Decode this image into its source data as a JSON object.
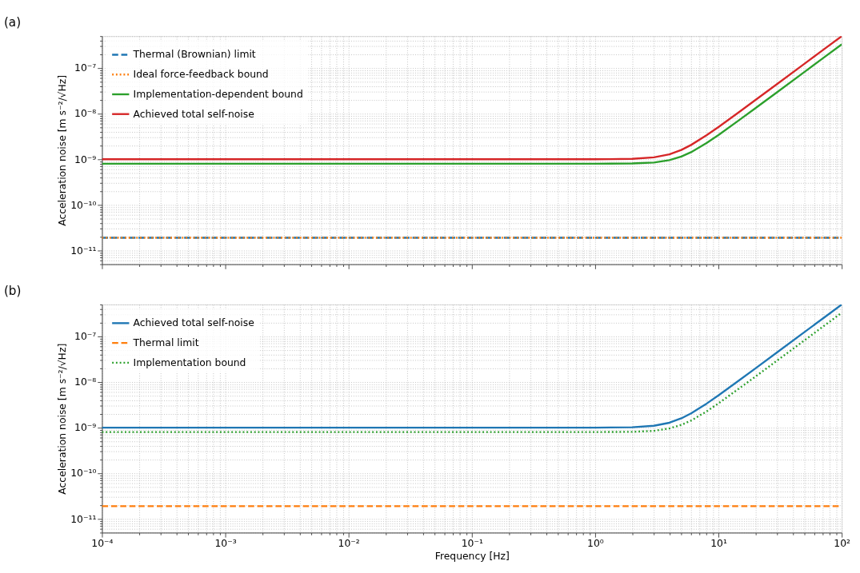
{
  "chart_data": [
    {
      "type": "line",
      "title": "(a)",
      "ylabel": "Acceleration noise  [m s⁻²/√Hz]",
      "log": "xy",
      "grid": true,
      "legend": "top left",
      "tick_labels": "y",
      "xlim": [
        0.0001,
        100
      ],
      "ylim": [
        5e-12,
        5e-07
      ],
      "xticks": [
        {
          "value": 0.0001,
          "label": null
        },
        {
          "value": 0.001,
          "label": null
        },
        {
          "value": 0.01,
          "label": null
        },
        {
          "value": 0.1,
          "label": null
        },
        {
          "value": 1,
          "label": null
        },
        {
          "value": 10,
          "label": null
        },
        {
          "value": 100,
          "label": null
        }
      ],
      "yticks": [
        {
          "value": 1e-11,
          "label": "10⁻¹¹"
        },
        {
          "value": 1e-10,
          "label": "10⁻¹⁰"
        },
        {
          "value": 1e-09,
          "label": "10⁻⁹"
        },
        {
          "value": 1e-08,
          "label": "10⁻⁸"
        },
        {
          "value": 1e-07,
          "label": "10⁻⁷"
        }
      ],
      "series": [
        {
          "name": "Thermal (Brownian) limit",
          "color": "#1f77b4",
          "line_style": "dashed",
          "x": [
            0.0001,
            100
          ],
          "values": [
            1.9e-11,
            1.9e-11
          ]
        },
        {
          "name": "Ideal force-feedback bound",
          "color": "#ff7f0e",
          "line_style": "dotted",
          "x": [
            0.0001,
            100
          ],
          "values": [
            1.9e-11,
            1.9e-11
          ]
        },
        {
          "name": "Implementation-dependent bound",
          "color": "#2ca02c",
          "line_style": "solid",
          "x": [
            0.0001,
            0.001,
            0.01,
            0.1,
            1,
            2,
            3,
            4,
            5,
            6,
            8,
            10,
            15,
            20,
            30,
            50,
            70,
            100
          ],
          "values": [
            8e-10,
            8e-10,
            8e-10,
            8e-10,
            8e-10,
            8.1e-10,
            8.5e-10,
            9.6e-10,
            1.15e-09,
            1.43e-09,
            2.26e-09,
            3.4e-09,
            7.5e-09,
            1.32e-08,
            2.97e-08,
            8.25e-08,
            1.62e-07,
            3.3e-07
          ]
        },
        {
          "name": "Achieved total self-noise",
          "color": "#d62728",
          "line_style": "solid",
          "x": [
            0.0001,
            0.001,
            0.01,
            0.1,
            1,
            2,
            3,
            4,
            5,
            6,
            8,
            10,
            15,
            20,
            30,
            50,
            70,
            100
          ],
          "values": [
            1e-09,
            1e-09,
            1e-09,
            1e-09,
            1e-09,
            1.02e-09,
            1.1e-09,
            1.28e-09,
            1.6e-09,
            2.06e-09,
            3.35e-09,
            5.1e-09,
            1.13e-08,
            2e-08,
            4.5e-08,
            1.25e-07,
            2.45e-07,
            5e-07
          ]
        }
      ]
    },
    {
      "type": "line",
      "title": "(b)",
      "xlabel": "Frequency [Hz]",
      "ylabel": "Acceleration noise  [m s⁻²/√Hz]",
      "log": "xy",
      "grid": true,
      "legend": "top left",
      "xlim": [
        0.0001,
        100
      ],
      "ylim": [
        5e-12,
        5e-07
      ],
      "xticks": [
        {
          "value": 0.0001,
          "label": "10⁻⁴"
        },
        {
          "value": 0.001,
          "label": "10⁻³"
        },
        {
          "value": 0.01,
          "label": "10⁻²"
        },
        {
          "value": 0.1,
          "label": "10⁻¹"
        },
        {
          "value": 1,
          "label": "10⁰"
        },
        {
          "value": 10,
          "label": "10¹"
        },
        {
          "value": 100,
          "label": "10²"
        }
      ],
      "yticks": [
        {
          "value": 1e-11,
          "label": "10⁻¹¹"
        },
        {
          "value": 1e-10,
          "label": "10⁻¹⁰"
        },
        {
          "value": 1e-09,
          "label": "10⁻⁹"
        },
        {
          "value": 1e-08,
          "label": "10⁻⁸"
        },
        {
          "value": 1e-07,
          "label": "10⁻⁷"
        }
      ],
      "series": [
        {
          "name": "Achieved total self-noise",
          "color": "#1f77b4",
          "line_style": "solid",
          "x": [
            0.0001,
            0.001,
            0.01,
            0.1,
            1,
            2,
            3,
            4,
            5,
            6,
            8,
            10,
            15,
            20,
            30,
            50,
            70,
            100
          ],
          "values": [
            1e-09,
            1e-09,
            1e-09,
            1e-09,
            1e-09,
            1.02e-09,
            1.1e-09,
            1.28e-09,
            1.6e-09,
            2.06e-09,
            3.35e-09,
            5.1e-09,
            1.13e-08,
            2e-08,
            4.5e-08,
            1.25e-07,
            2.45e-07,
            5e-07
          ]
        },
        {
          "name": "Thermal limit",
          "color": "#ff7f0e",
          "line_style": "dashed",
          "x": [
            0.0001,
            100
          ],
          "values": [
            1.9e-11,
            1.9e-11
          ]
        },
        {
          "name": "Implementation bound",
          "color": "#2ca02c",
          "line_style": "dotted",
          "x": [
            0.0001,
            0.001,
            0.01,
            0.1,
            1,
            2,
            3,
            4,
            5,
            6,
            8,
            10,
            15,
            20,
            30,
            50,
            70,
            100
          ],
          "values": [
            8e-10,
            8e-10,
            8e-10,
            8e-10,
            8e-10,
            8.1e-10,
            8.5e-10,
            9.6e-10,
            1.15e-09,
            1.43e-09,
            2.26e-09,
            3.4e-09,
            7.5e-09,
            1.32e-08,
            2.97e-08,
            8.25e-08,
            1.62e-07,
            3.3e-07
          ]
        }
      ]
    }
  ]
}
